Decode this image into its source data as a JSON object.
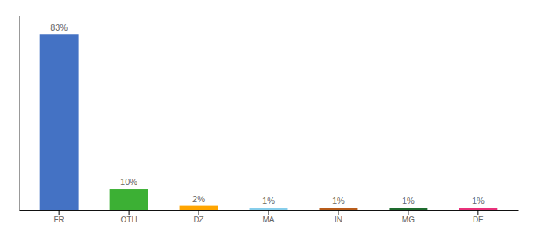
{
  "chart_data": {
    "type": "bar",
    "categories": [
      "FR",
      "OTH",
      "DZ",
      "MA",
      "IN",
      "MG",
      "DE"
    ],
    "values": [
      83,
      10,
      2,
      1,
      1,
      1,
      1
    ],
    "value_labels": [
      "83%",
      "10%",
      "2%",
      "1%",
      "1%",
      "1%",
      "1%"
    ],
    "data_labels": true,
    "colors": [
      "#4472C4",
      "#3CB034",
      "#FFA500",
      "#87CEEB",
      "#B85C1A",
      "#1E6B2E",
      "#E8317A"
    ],
    "ylim": [
      0,
      92
    ],
    "tick_labels": "x",
    "grid": false
  }
}
